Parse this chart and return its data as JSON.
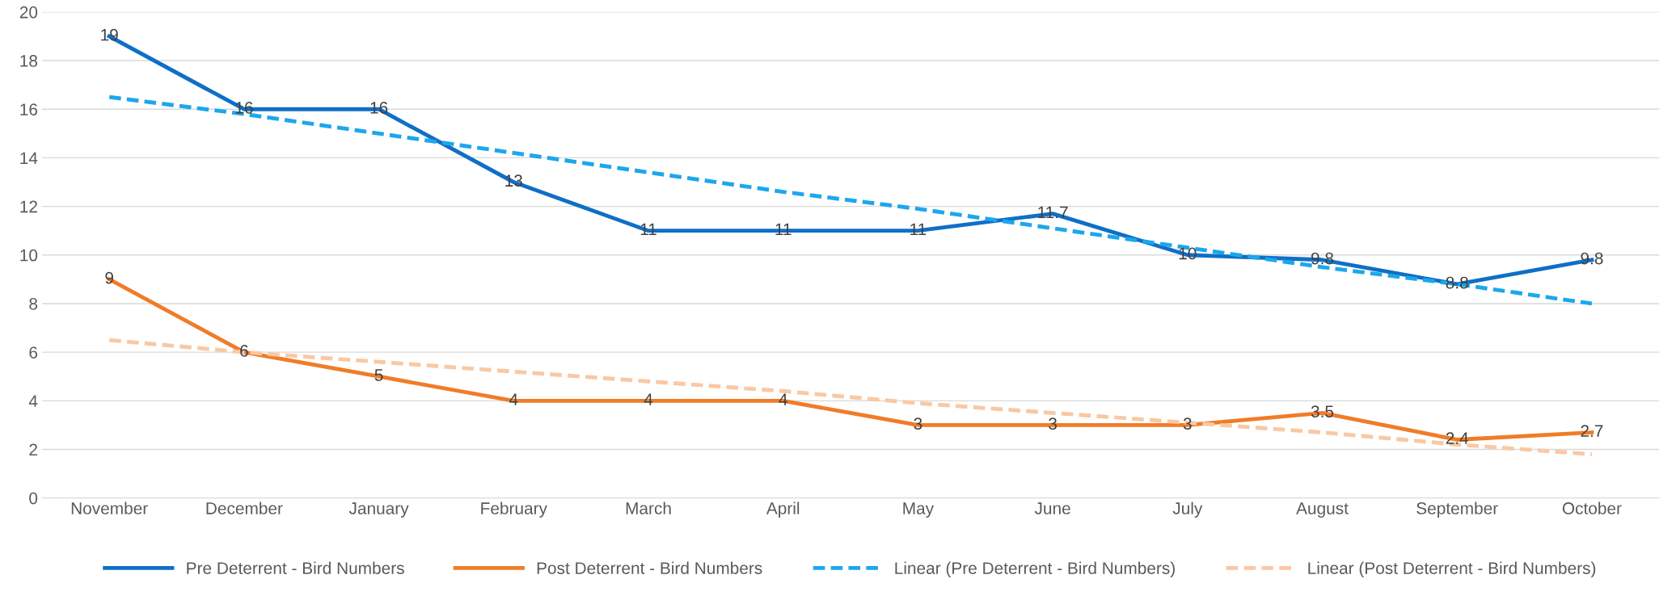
{
  "chart_data": {
    "type": "line",
    "categories": [
      "November",
      "December",
      "January",
      "February",
      "March",
      "April",
      "May",
      "June",
      "July",
      "August",
      "September",
      "October"
    ],
    "series": [
      {
        "name": "Pre Deterrent - Bird Numbers",
        "color": "#0f6fc6",
        "values": [
          19,
          16,
          16,
          13,
          11,
          11,
          11,
          11.7,
          10,
          9.8,
          8.8,
          9.8
        ],
        "value_labels": [
          "19",
          "16",
          "16",
          "13",
          "11",
          "11",
          "11",
          "11.7",
          "10",
          "9.8",
          "8.8",
          "9.8"
        ],
        "line_style": "solid"
      },
      {
        "name": "Post Deterrent - Bird Numbers",
        "color": "#f07c28",
        "values": [
          9,
          6,
          5,
          4,
          4,
          4,
          3,
          3,
          3,
          3.5,
          2.4,
          2.7
        ],
        "value_labels": [
          "9",
          "6",
          "5",
          "4",
          "4",
          "4",
          "3",
          "3",
          "3",
          "3.5",
          "2.4",
          "2.7"
        ],
        "line_style": "solid"
      },
      {
        "name": "Linear (Pre Deterrent - Bird Numbers)",
        "color": "#1ca7ec",
        "values": [
          16.5,
          15.8,
          15.0,
          14.2,
          13.4,
          12.6,
          11.9,
          11.1,
          10.3,
          9.5,
          8.8,
          8.0
        ],
        "line_style": "dashed"
      },
      {
        "name": "Linear (Post Deterrent - Bird Numbers)",
        "color": "#f9c8a4",
        "values": [
          6.5,
          6.0,
          5.6,
          5.2,
          4.8,
          4.4,
          3.9,
          3.5,
          3.1,
          2.7,
          2.2,
          1.8
        ],
        "line_style": "dashed"
      }
    ],
    "ylim": [
      0,
      20
    ],
    "yticks": [
      0,
      2,
      4,
      6,
      8,
      10,
      12,
      14,
      16,
      18,
      20
    ],
    "grid": "y",
    "legend": "bottom",
    "marker": "none"
  }
}
